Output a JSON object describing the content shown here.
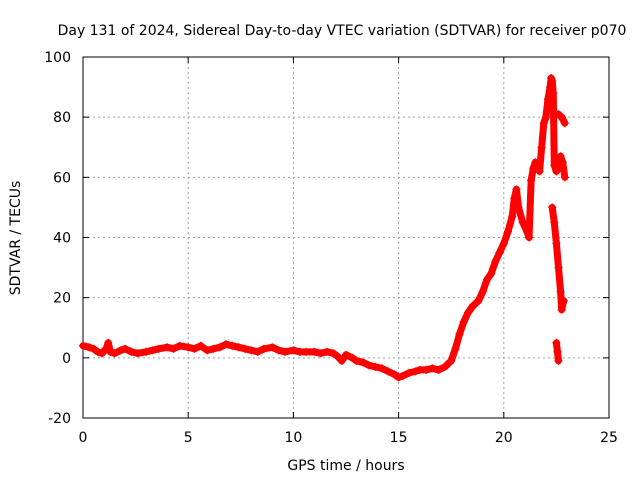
{
  "chart_data": {
    "type": "scatter",
    "title": "Day 131 of 2024, Sidereal Day-to-day VTEC variation (SDTVAR) for receiver p070",
    "xlabel": "GPS time / hours",
    "ylabel": "SDTVAR / TECUs",
    "xlim": [
      0,
      25
    ],
    "ylim": [
      -20,
      100
    ],
    "xticks": [
      "0",
      "5",
      "10",
      "15",
      "20",
      "25"
    ],
    "yticks": [
      "-20",
      "0",
      "20",
      "40",
      "60",
      "80",
      "100"
    ],
    "grid": true,
    "marker": "plus",
    "color": "#ff0000",
    "series": [
      {
        "name": "SDTVAR",
        "points": [
          [
            0.0,
            4
          ],
          [
            0.3,
            3.5
          ],
          [
            0.5,
            3
          ],
          [
            0.7,
            2
          ],
          [
            0.9,
            1.5
          ],
          [
            1.1,
            3
          ],
          [
            1.2,
            5
          ],
          [
            1.3,
            2
          ],
          [
            1.5,
            1.5
          ],
          [
            1.8,
            2.5
          ],
          [
            2.0,
            3
          ],
          [
            2.3,
            2
          ],
          [
            2.6,
            1.5
          ],
          [
            3.0,
            2
          ],
          [
            3.3,
            2.5
          ],
          [
            3.6,
            3
          ],
          [
            4.0,
            3.5
          ],
          [
            4.3,
            3
          ],
          [
            4.6,
            4
          ],
          [
            5.0,
            3.5
          ],
          [
            5.3,
            3
          ],
          [
            5.6,
            4
          ],
          [
            5.9,
            2.5
          ],
          [
            6.2,
            3
          ],
          [
            6.5,
            3.5
          ],
          [
            6.8,
            4.5
          ],
          [
            7.1,
            4
          ],
          [
            7.4,
            3.5
          ],
          [
            7.7,
            3
          ],
          [
            8.0,
            2.5
          ],
          [
            8.3,
            2
          ],
          [
            8.6,
            3
          ],
          [
            9.0,
            3.5
          ],
          [
            9.3,
            2.5
          ],
          [
            9.6,
            2
          ],
          [
            10.0,
            2.5
          ],
          [
            10.3,
            2
          ],
          [
            10.6,
            2
          ],
          [
            11.0,
            2
          ],
          [
            11.3,
            1.5
          ],
          [
            11.6,
            2
          ],
          [
            11.9,
            1.5
          ],
          [
            12.1,
            0.5
          ],
          [
            12.3,
            -1
          ],
          [
            12.5,
            1
          ],
          [
            12.8,
            0
          ],
          [
            13.0,
            -1
          ],
          [
            13.3,
            -1.5
          ],
          [
            13.6,
            -2.5
          ],
          [
            13.9,
            -3
          ],
          [
            14.2,
            -3.5
          ],
          [
            14.5,
            -4.5
          ],
          [
            14.8,
            -5.5
          ],
          [
            15.0,
            -6.5
          ],
          [
            15.2,
            -6
          ],
          [
            15.5,
            -5
          ],
          [
            15.8,
            -4.5
          ],
          [
            16.0,
            -4
          ],
          [
            16.3,
            -4
          ],
          [
            16.6,
            -3.5
          ],
          [
            16.9,
            -4
          ],
          [
            17.2,
            -3
          ],
          [
            17.5,
            -1
          ],
          [
            17.7,
            3
          ],
          [
            17.9,
            8
          ],
          [
            18.1,
            12
          ],
          [
            18.3,
            15
          ],
          [
            18.5,
            17
          ],
          [
            18.8,
            19
          ],
          [
            19.0,
            22
          ],
          [
            19.2,
            26
          ],
          [
            19.4,
            28
          ],
          [
            19.6,
            32
          ],
          [
            19.8,
            35
          ],
          [
            20.0,
            38
          ],
          [
            20.2,
            42
          ],
          [
            20.4,
            47
          ],
          [
            20.5,
            53
          ],
          [
            20.6,
            56
          ],
          [
            20.7,
            50
          ],
          [
            20.9,
            45
          ],
          [
            21.1,
            42
          ],
          [
            21.2,
            40
          ],
          [
            21.3,
            59
          ],
          [
            21.4,
            63
          ],
          [
            21.5,
            65
          ],
          [
            21.7,
            62
          ],
          [
            21.8,
            70
          ],
          [
            21.9,
            78
          ],
          [
            22.0,
            80
          ],
          [
            22.1,
            86
          ],
          [
            22.2,
            90
          ],
          [
            22.25,
            93
          ],
          [
            22.3,
            92
          ],
          [
            22.35,
            88
          ],
          [
            22.4,
            64
          ],
          [
            22.5,
            62
          ],
          [
            22.6,
            64
          ],
          [
            22.7,
            67
          ],
          [
            22.8,
            65
          ],
          [
            22.9,
            60
          ],
          [
            22.6,
            81
          ],
          [
            22.75,
            80
          ],
          [
            22.9,
            78
          ],
          [
            22.3,
            50
          ],
          [
            22.4,
            45
          ],
          [
            22.5,
            38
          ],
          [
            22.6,
            30
          ],
          [
            22.7,
            22
          ],
          [
            22.75,
            16
          ],
          [
            22.85,
            19
          ],
          [
            22.5,
            5
          ],
          [
            22.55,
            2
          ],
          [
            22.6,
            -1
          ]
        ]
      }
    ]
  }
}
